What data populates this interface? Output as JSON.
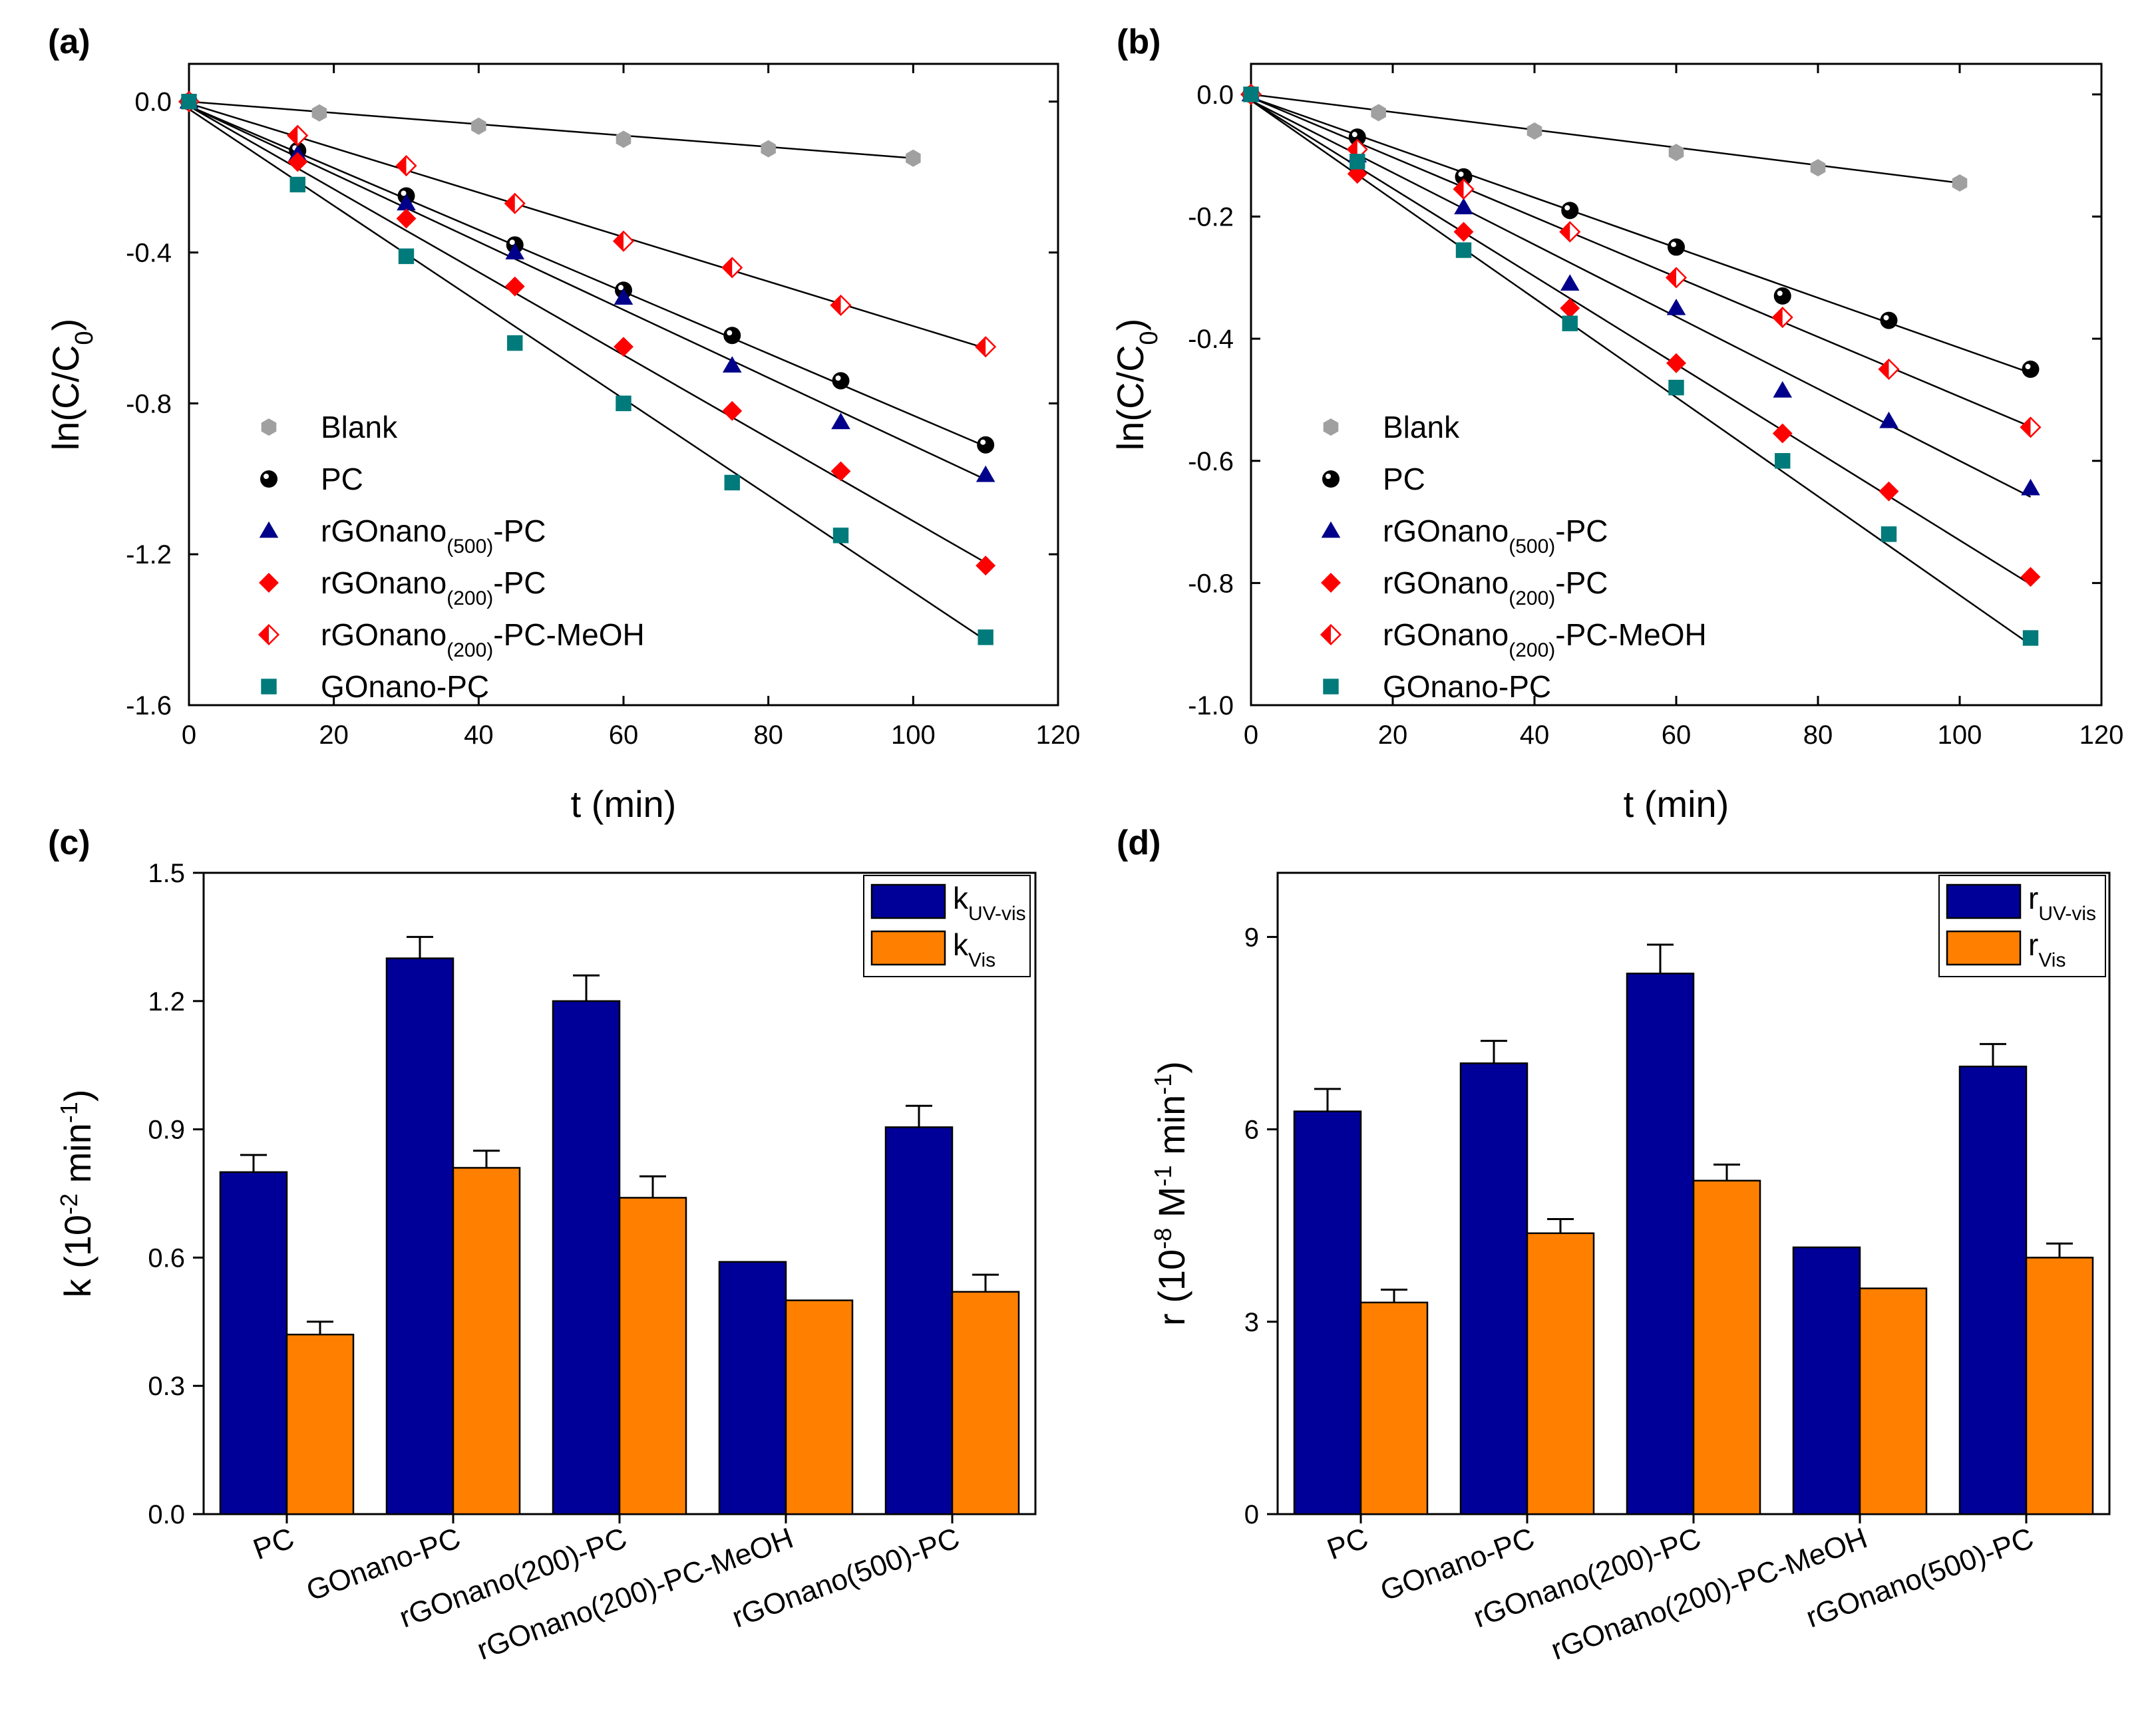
{
  "figure": {
    "colors": {
      "blank": "#a0a0a0",
      "pc": "#000000",
      "rgo500": "#00008b",
      "rgo200": "#ff0000",
      "rgo200meoh": "#ff0000",
      "gonano": "#007a7a",
      "bar_uv": "#000099",
      "bar_vis": "#ff8000"
    }
  },
  "chart_data": [
    {
      "id": "a",
      "type": "scatter",
      "panel_label": "(a)",
      "xlabel": "t (min)",
      "ylabel": "ln(C/C0)",
      "ylabel_main": "ln(C/C",
      "ylabel_sub": "0",
      "ylabel_end": ")",
      "xlim": [
        0,
        120
      ],
      "ylim": [
        -1.6,
        0.1
      ],
      "xticks": [
        0,
        20,
        40,
        60,
        80,
        100,
        120
      ],
      "xtick_labels": [
        "0",
        "20",
        "40",
        "60",
        "80",
        "100",
        "120"
      ],
      "yticks": [
        0.0,
        -0.4,
        -0.8,
        -1.2,
        -1.6
      ],
      "ytick_labels": [
        "0.0",
        "-0.4",
        "-0.8",
        "-1.2",
        "-1.6"
      ],
      "legend_position": "bottom-left",
      "series": [
        {
          "name": "Blank",
          "legend": {
            "main": "Blank",
            "sub": "",
            "end": ""
          },
          "marker": "hexagon",
          "color_key": "blank",
          "x": [
            0,
            18,
            40,
            60,
            80,
            100
          ],
          "y": [
            0.0,
            -0.03,
            -0.065,
            -0.1,
            -0.125,
            -0.15
          ],
          "fit": [
            0,
            -0.0015,
            0,
            100
          ]
        },
        {
          "name": "PC",
          "legend": {
            "main": "PC",
            "sub": "",
            "end": ""
          },
          "marker": "sphere",
          "color_key": "pc",
          "x": [
            0,
            15,
            30,
            45,
            60,
            75,
            90,
            110
          ],
          "y": [
            0.0,
            -0.13,
            -0.25,
            -0.38,
            -0.5,
            -0.62,
            -0.74,
            -0.91
          ],
          "fit": [
            -0.012,
            -0.0082,
            0,
            110
          ]
        },
        {
          "name": "rGOnano(500)-PC",
          "legend": {
            "main": "rGOnano",
            "sub": "(500)",
            "end": "-PC"
          },
          "marker": "triangle",
          "color_key": "rgo500",
          "x": [
            0,
            15,
            30,
            45,
            60,
            75,
            90,
            110
          ],
          "y": [
            0.0,
            -0.14,
            -0.27,
            -0.4,
            -0.52,
            -0.7,
            -0.85,
            -0.99
          ],
          "fit": [
            -0.012,
            -0.009,
            0,
            110
          ]
        },
        {
          "name": "rGOnano(200)-PC",
          "legend": {
            "main": "rGOnano",
            "sub": "(200)",
            "end": "-PC"
          },
          "marker": "diamond",
          "color_key": "rgo200",
          "x": [
            0,
            15,
            30,
            45,
            60,
            75,
            90,
            110
          ],
          "y": [
            0.0,
            -0.16,
            -0.31,
            -0.49,
            -0.65,
            -0.82,
            -0.98,
            -1.23
          ],
          "fit": [
            -0.012,
            -0.011,
            0,
            110
          ]
        },
        {
          "name": "rGOnano(200)-PC-MeOH",
          "legend": {
            "main": "rGOnano",
            "sub": "(200)",
            "end": "-PC-MeOH"
          },
          "marker": "half-diamond",
          "color_key": "rgo200meoh",
          "x": [
            0,
            15,
            30,
            45,
            60,
            75,
            90,
            110
          ],
          "y": [
            0.0,
            -0.09,
            -0.17,
            -0.27,
            -0.37,
            -0.44,
            -0.54,
            -0.65
          ],
          "fit": [
            -0.005,
            -0.0059,
            0,
            110
          ]
        },
        {
          "name": "GOnano-PC",
          "legend": {
            "main": "GOnano-PC",
            "sub": "",
            "end": ""
          },
          "marker": "square",
          "color_key": "gonano",
          "x": [
            0,
            15,
            30,
            45,
            60,
            75,
            90,
            110
          ],
          "y": [
            0.0,
            -0.22,
            -0.41,
            -0.64,
            -0.8,
            -1.01,
            -1.15,
            -1.42
          ],
          "fit": [
            -0.02,
            -0.0128,
            0,
            110
          ]
        }
      ]
    },
    {
      "id": "b",
      "type": "scatter",
      "panel_label": "(b)",
      "xlabel": "t (min)",
      "ylabel": "ln(C/C0)",
      "ylabel_main": "ln(C/C",
      "ylabel_sub": "0",
      "ylabel_end": ")",
      "xlim": [
        0,
        120
      ],
      "ylim": [
        -1.0,
        0.05
      ],
      "xticks": [
        0,
        20,
        40,
        60,
        80,
        100,
        120
      ],
      "xtick_labels": [
        "0",
        "20",
        "40",
        "60",
        "80",
        "100",
        "120"
      ],
      "yticks": [
        0.0,
        -0.2,
        -0.4,
        -0.6,
        -0.8,
        -1.0
      ],
      "ytick_labels": [
        "0.0",
        "-0.2",
        "-0.4",
        "-0.6",
        "-0.8",
        "-1.0"
      ],
      "legend_position": "bottom-left",
      "series": [
        {
          "name": "Blank",
          "legend": {
            "main": "Blank",
            "sub": "",
            "end": ""
          },
          "marker": "hexagon",
          "color_key": "blank",
          "x": [
            0,
            18,
            40,
            60,
            80,
            100
          ],
          "y": [
            0.0,
            -0.03,
            -0.06,
            -0.095,
            -0.12,
            -0.145
          ],
          "fit": [
            0,
            -0.00145,
            0,
            100
          ]
        },
        {
          "name": "PC",
          "legend": {
            "main": "PC",
            "sub": "",
            "end": ""
          },
          "marker": "sphere",
          "color_key": "pc",
          "x": [
            0,
            15,
            30,
            45,
            60,
            75,
            90,
            110
          ],
          "y": [
            0.0,
            -0.07,
            -0.135,
            -0.19,
            -0.25,
            -0.33,
            -0.37,
            -0.45
          ],
          "fit": [
            -0.005,
            -0.0041,
            0,
            110
          ]
        },
        {
          "name": "rGOnano(500)-PC",
          "legend": {
            "main": "rGOnano",
            "sub": "(500)",
            "end": "-PC"
          },
          "marker": "triangle",
          "color_key": "rgo500",
          "x": [
            0,
            15,
            30,
            45,
            60,
            75,
            90,
            110
          ],
          "y": [
            0.0,
            -0.1,
            -0.185,
            -0.31,
            -0.35,
            -0.485,
            -0.535,
            -0.645
          ],
          "fit": [
            -0.01,
            -0.0059,
            0,
            110
          ]
        },
        {
          "name": "rGOnano(200)-PC",
          "legend": {
            "main": "rGOnano",
            "sub": "(200)",
            "end": "-PC"
          },
          "marker": "diamond",
          "color_key": "rgo200",
          "x": [
            0,
            15,
            30,
            45,
            60,
            75,
            90,
            110
          ],
          "y": [
            0.0,
            -0.13,
            -0.225,
            -0.35,
            -0.44,
            -0.555,
            -0.65,
            -0.79
          ],
          "fit": [
            -0.01,
            -0.0072,
            0,
            110
          ]
        },
        {
          "name": "rGOnano(200)-PC-MeOH",
          "legend": {
            "main": "rGOnano",
            "sub": "(200)",
            "end": "-PC-MeOH"
          },
          "marker": "half-diamond",
          "color_key": "rgo200meoh",
          "x": [
            0,
            15,
            30,
            45,
            60,
            75,
            90,
            110
          ],
          "y": [
            0.0,
            -0.09,
            -0.155,
            -0.225,
            -0.3,
            -0.365,
            -0.45,
            -0.545
          ],
          "fit": [
            -0.005,
            -0.0049,
            0,
            110
          ]
        },
        {
          "name": "GOnano-PC",
          "legend": {
            "main": "GOnano-PC",
            "sub": "",
            "end": ""
          },
          "marker": "square",
          "color_key": "gonano",
          "x": [
            0,
            15,
            30,
            45,
            60,
            75,
            90,
            110
          ],
          "y": [
            0.0,
            -0.11,
            -0.255,
            -0.375,
            -0.48,
            -0.6,
            -0.72,
            -0.89
          ],
          "fit": [
            -0.01,
            -0.0081,
            0,
            110
          ]
        }
      ]
    },
    {
      "id": "c",
      "type": "bar",
      "panel_label": "(c)",
      "xlabel": "",
      "ylabel": "k (10-2 min-1)",
      "ylabel_parts": [
        "k (10",
        "-2",
        " min",
        "-1",
        ")"
      ],
      "categories": [
        "PC",
        "GOnano-PC",
        "rGOnano(200)-PC",
        "rGOnano(200)-PC-MeOH",
        "rGOnano(500)-PC"
      ],
      "ylim": [
        0,
        1.5
      ],
      "yticks": [
        0.0,
        0.3,
        0.6,
        0.9,
        1.2,
        1.5
      ],
      "ytick_labels": [
        "0.0",
        "0.3",
        "0.6",
        "0.9",
        "1.2",
        "1.5"
      ],
      "legend_position": "top-right",
      "series": [
        {
          "name": "kUV-vis",
          "legend": {
            "main": "k",
            "sub": "UV-vis"
          },
          "color_key": "bar_uv",
          "values": [
            0.8,
            1.3,
            1.2,
            0.59,
            0.905
          ],
          "errors": [
            0.04,
            0.05,
            0.06,
            0,
            0.05
          ]
        },
        {
          "name": "kVis",
          "legend": {
            "main": "k",
            "sub": "Vis"
          },
          "color_key": "bar_vis",
          "values": [
            0.42,
            0.81,
            0.74,
            0.5,
            0.52
          ],
          "errors": [
            0.03,
            0.04,
            0.05,
            0,
            0.04
          ]
        }
      ]
    },
    {
      "id": "d",
      "type": "bar",
      "panel_label": "(d)",
      "xlabel": "",
      "ylabel": "r (10-8 M-1 min-1)",
      "ylabel_parts": [
        "r (10",
        "-8",
        " M",
        "-1",
        " min",
        "-1",
        ")"
      ],
      "categories": [
        "PC",
        "GOnano-PC",
        "rGOnano(200)-PC",
        "rGOnano(200)-PC-MeOH",
        "rGOnano(500)-PC"
      ],
      "ylim": [
        0,
        10
      ],
      "yticks": [
        0,
        3,
        6,
        9
      ],
      "ytick_labels": [
        "0",
        "3",
        "6",
        "9"
      ],
      "legend_position": "top-right",
      "series": [
        {
          "name": "rUV-vis",
          "legend": {
            "main": "r",
            "sub": "UV-vis"
          },
          "color_key": "bar_uv",
          "values": [
            6.28,
            7.03,
            8.43,
            4.16,
            6.98
          ],
          "errors": [
            0.35,
            0.35,
            0.45,
            0,
            0.35
          ]
        },
        {
          "name": "rVis",
          "legend": {
            "main": "r",
            "sub": "Vis"
          },
          "color_key": "bar_vis",
          "values": [
            3.3,
            4.38,
            5.2,
            3.52,
            4.0
          ],
          "errors": [
            0.2,
            0.22,
            0.25,
            0,
            0.22
          ]
        }
      ]
    }
  ]
}
